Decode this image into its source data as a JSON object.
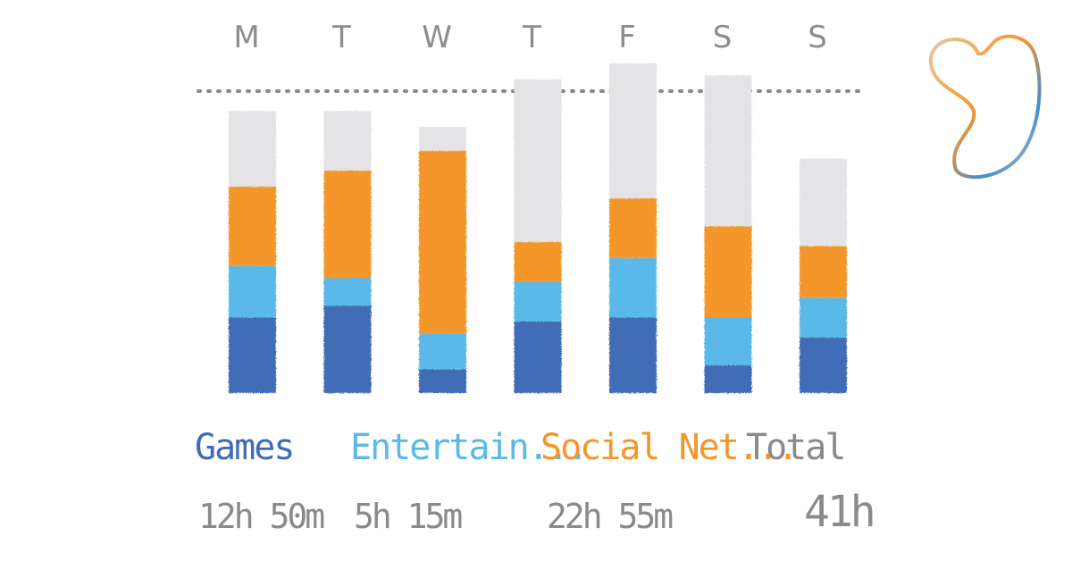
{
  "chart_data": {
    "type": "bar",
    "stacked": true,
    "title": "",
    "xlabel": "",
    "ylabel": "",
    "categories": [
      "M",
      "T",
      "W",
      "T",
      "F",
      "S",
      "S"
    ],
    "series": [
      {
        "name": "Games",
        "color": "#3f6db5",
        "values": [
          1.9,
          2.2,
          0.6,
          1.8,
          1.9,
          0.7,
          1.4
        ]
      },
      {
        "name": "Entertain...",
        "color": "#5ab9e8",
        "values": [
          1.3,
          0.7,
          0.9,
          1.0,
          1.5,
          1.2,
          1.0
        ]
      },
      {
        "name": "Social Net...",
        "color": "#f5962a",
        "values": [
          2.0,
          2.7,
          4.6,
          1.0,
          1.5,
          2.3,
          1.3
        ]
      },
      {
        "color": "#e4e4e6",
        "values": [
          1.9,
          1.5,
          0.6,
          4.1,
          3.4,
          3.8,
          2.2
        ]
      }
    ],
    "reference_line": 7.6,
    "ylim": [
      0,
      8.5
    ],
    "grid": false,
    "legend_position": "bottom"
  },
  "summary": [
    {
      "label": "Games",
      "value": "12h 50m",
      "color": "#3f6db5"
    },
    {
      "label": "Entertain...",
      "value": "5h 15m",
      "color": "#5ab9e8"
    },
    {
      "label": "Social Net...",
      "value": "22h 55m",
      "color": "#f5962a"
    },
    {
      "label": "Total",
      "value": "41h",
      "color": "#8a8a8a"
    }
  ],
  "logo": {
    "name": "heart-logo-icon",
    "colors": [
      "#f5962a",
      "#3f8fd0",
      "#e9c9a8"
    ]
  }
}
